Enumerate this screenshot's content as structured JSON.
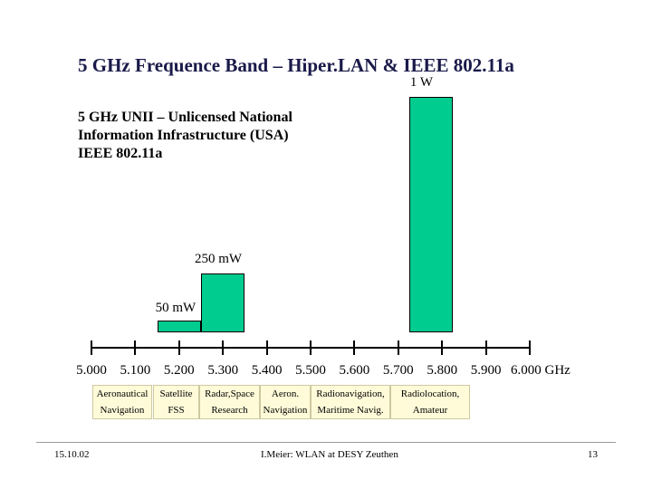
{
  "slide": {
    "title": "5 GHz Frequence Band – Hiper.LAN & IEEE 802.11a",
    "subtitle_lines": [
      "5 GHz UNII – Unlicensed National",
      "Information Infrastructure (USA)",
      "IEEE 802.11a"
    ]
  },
  "chart_data": {
    "type": "bar",
    "axis_unit": "GHz",
    "xlim": [
      5.0,
      6.0
    ],
    "ticks": [
      5.0,
      5.1,
      5.2,
      5.3,
      5.4,
      5.5,
      5.6,
      5.7,
      5.8,
      5.9,
      6.0
    ],
    "tick_labels": [
      "5.000",
      "5.100",
      "5.200",
      "5.300",
      "5.400",
      "5.500",
      "5.600",
      "5.700",
      "5.800",
      "5.900",
      "6.000 GHz"
    ],
    "bars": [
      {
        "start": 5.15,
        "end": 5.25,
        "label": "50 mW",
        "power_mw": 50
      },
      {
        "start": 5.25,
        "end": 5.35,
        "label": "250 mW",
        "power_mw": 250
      },
      {
        "start": 5.725,
        "end": 5.825,
        "label": "1 W",
        "power_mw": 1000
      }
    ],
    "allocations": [
      {
        "lines": [
          "Aeronautical",
          "Navigation"
        ]
      },
      {
        "lines": [
          "Satellite",
          "FSS"
        ]
      },
      {
        "lines": [
          "Radar,Space",
          "Research"
        ]
      },
      {
        "lines": [
          "Aeron.",
          "Navigation"
        ]
      },
      {
        "lines": [
          "Radionavigation,",
          "Maritime Navig."
        ]
      },
      {
        "lines": [
          "Radiolocation,",
          "Amateur"
        ]
      }
    ],
    "bar_color": "#00cc8f",
    "allocation_color": "#fffbd9"
  },
  "footer": {
    "date": "15.10.02",
    "author": "I.Meier: WLAN at DESY Zeuthen",
    "page": "13"
  }
}
